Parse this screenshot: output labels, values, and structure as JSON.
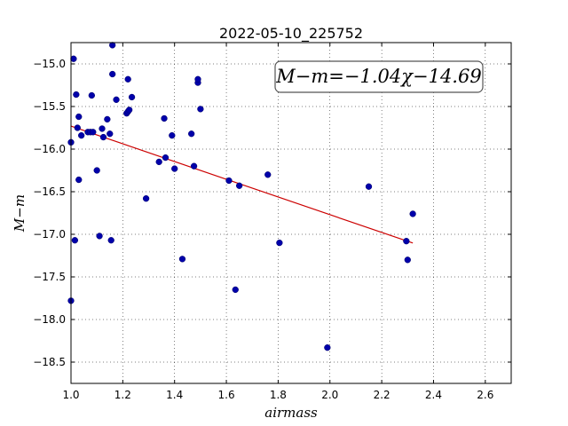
{
  "chart_data": {
    "type": "scatter",
    "title": "2022-05-10_225752",
    "xlabel": "airmass",
    "ylabel": "M−m",
    "xlim": [
      1.0,
      2.7
    ],
    "ylim": [
      -18.75,
      -14.75
    ],
    "x_ticks": [
      1.0,
      1.2,
      1.4,
      1.6,
      1.8,
      2.0,
      2.2,
      2.4,
      2.6
    ],
    "x_tick_labels": [
      "1.0",
      "1.2",
      "1.4",
      "1.6",
      "1.8",
      "2.0",
      "2.2",
      "2.4",
      "2.6"
    ],
    "y_ticks": [
      -15.0,
      -15.5,
      -16.0,
      -16.5,
      -17.0,
      -17.5,
      -18.0,
      -18.5
    ],
    "y_tick_labels": [
      "−15.0",
      "−15.5",
      "−16.0",
      "−16.5",
      "−17.0",
      "−17.5",
      "−18.0",
      "−18.5"
    ],
    "grid": true,
    "annotation": "M−m=−1.04χ−14.69",
    "point_color": "#0000aa",
    "fit_color": "#cc0000",
    "fit": {
      "slope": -1.04,
      "intercept": -14.69,
      "x_range": [
        1.0,
        2.32
      ]
    },
    "points": [
      [
        1.0,
        -15.92
      ],
      [
        1.0,
        -17.78
      ],
      [
        1.01,
        -14.94
      ],
      [
        1.015,
        -17.07
      ],
      [
        1.02,
        -15.36
      ],
      [
        1.025,
        -15.75
      ],
      [
        1.03,
        -15.62
      ],
      [
        1.03,
        -16.36
      ],
      [
        1.04,
        -15.84
      ],
      [
        1.065,
        -15.8
      ],
      [
        1.075,
        -15.8
      ],
      [
        1.08,
        -15.37
      ],
      [
        1.085,
        -15.8
      ],
      [
        1.1,
        -16.25
      ],
      [
        1.11,
        -17.02
      ],
      [
        1.12,
        -15.76
      ],
      [
        1.125,
        -15.86
      ],
      [
        1.14,
        -15.65
      ],
      [
        1.15,
        -15.82
      ],
      [
        1.155,
        -17.07
      ],
      [
        1.16,
        -15.12
      ],
      [
        1.16,
        -14.78
      ],
      [
        1.175,
        -15.42
      ],
      [
        1.215,
        -15.58
      ],
      [
        1.22,
        -15.56
      ],
      [
        1.22,
        -15.18
      ],
      [
        1.225,
        -15.54
      ],
      [
        1.235,
        -15.39
      ],
      [
        1.29,
        -16.58
      ],
      [
        1.34,
        -16.15
      ],
      [
        1.36,
        -15.64
      ],
      [
        1.365,
        -16.1
      ],
      [
        1.39,
        -15.84
      ],
      [
        1.4,
        -16.23
      ],
      [
        1.43,
        -17.29
      ],
      [
        1.465,
        -15.82
      ],
      [
        1.475,
        -16.2
      ],
      [
        1.49,
        -15.22
      ],
      [
        1.49,
        -15.18
      ],
      [
        1.5,
        -15.53
      ],
      [
        1.61,
        -16.37
      ],
      [
        1.635,
        -17.65
      ],
      [
        1.65,
        -16.43
      ],
      [
        1.76,
        -16.3
      ],
      [
        1.805,
        -17.1
      ],
      [
        1.99,
        -18.33
      ],
      [
        2.15,
        -16.44
      ],
      [
        2.295,
        -17.08
      ],
      [
        2.3,
        -17.3
      ],
      [
        2.32,
        -16.76
      ]
    ]
  }
}
